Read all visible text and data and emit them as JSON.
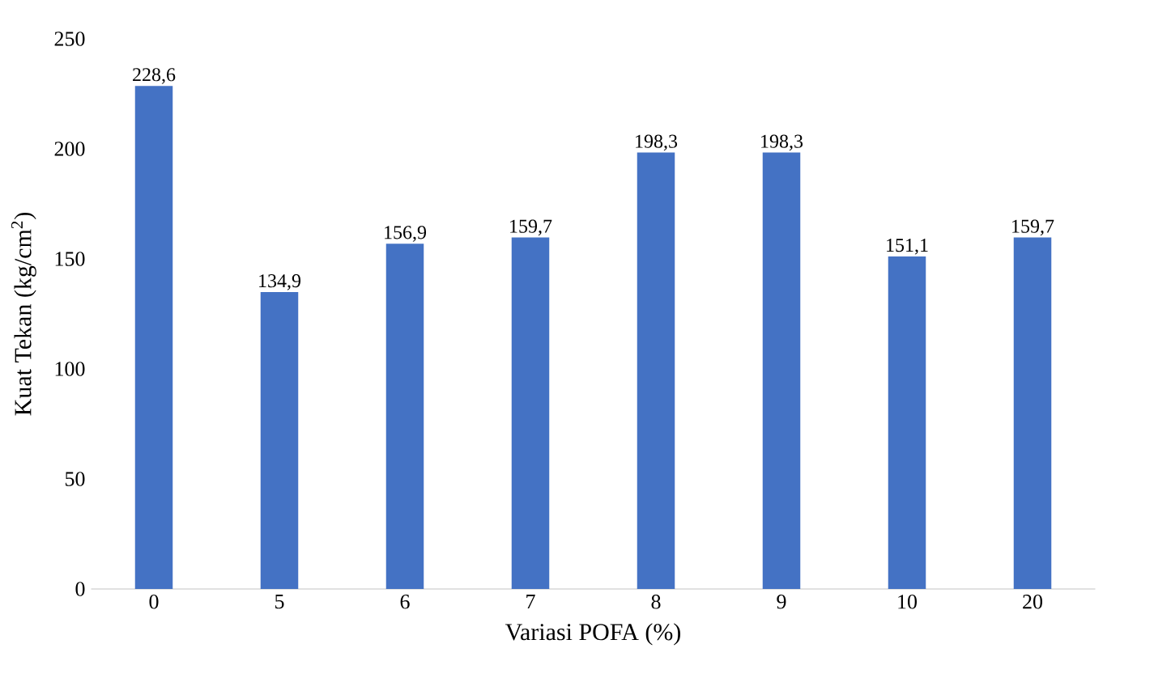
{
  "chart_data": {
    "type": "bar",
    "xlabel": "Variasi POFA (%)",
    "ylabel": "Kuat Tekan (kg/cm$^{2}$)",
    "categories": [
      "0",
      "5",
      "6",
      "7",
      "8",
      "9",
      "10",
      "20"
    ],
    "values": [
      228.6,
      134.9,
      156.9,
      159.7,
      198.3,
      198.3,
      151.1,
      159.7
    ],
    "value_labels": [
      "228,6",
      "134,9",
      "156,9",
      "159,7",
      "198,3",
      "198,3",
      "151,1",
      "159,7"
    ],
    "color": "#4472c4",
    "ylim": [
      0,
      250
    ],
    "yticks": [
      0,
      50,
      100,
      150,
      200,
      250
    ],
    "grid": false
  }
}
